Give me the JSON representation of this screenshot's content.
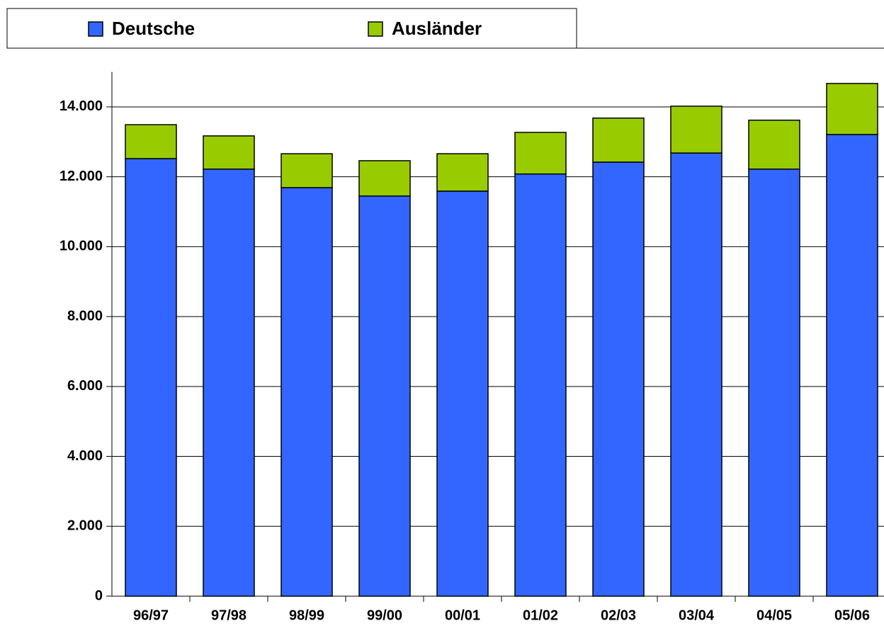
{
  "chart_data": {
    "type": "stacked_bar",
    "categories": [
      "96/97",
      "97/98",
      "98/99",
      "99/00",
      "00/01",
      "01/02",
      "02/03",
      "03/04",
      "04/05",
      "05/06"
    ],
    "series": [
      {
        "name": "Deutsche",
        "color": "#3366ff",
        "values": [
          12520,
          12220,
          11690,
          11450,
          11590,
          12080,
          12420,
          12680,
          12220,
          13210
        ]
      },
      {
        "name": "Ausländer",
        "color": "#99cc00",
        "values": [
          970,
          950,
          970,
          1010,
          1070,
          1190,
          1260,
          1340,
          1400,
          1460
        ]
      }
    ],
    "ylim": [
      0,
      15000
    ],
    "yticks": [
      0,
      {
        "value": 2000,
        "label": "2.000"
      },
      {
        "value": 4000,
        "label": "4.000"
      },
      {
        "value": 6000,
        "label": "6.000"
      },
      {
        "value": 8000,
        "label": "8.000"
      },
      {
        "value": 10000,
        "label": "10.000"
      },
      {
        "value": 12000,
        "label": "12.000"
      },
      {
        "value": 14000,
        "label": "14.000"
      }
    ],
    "grid": true
  }
}
